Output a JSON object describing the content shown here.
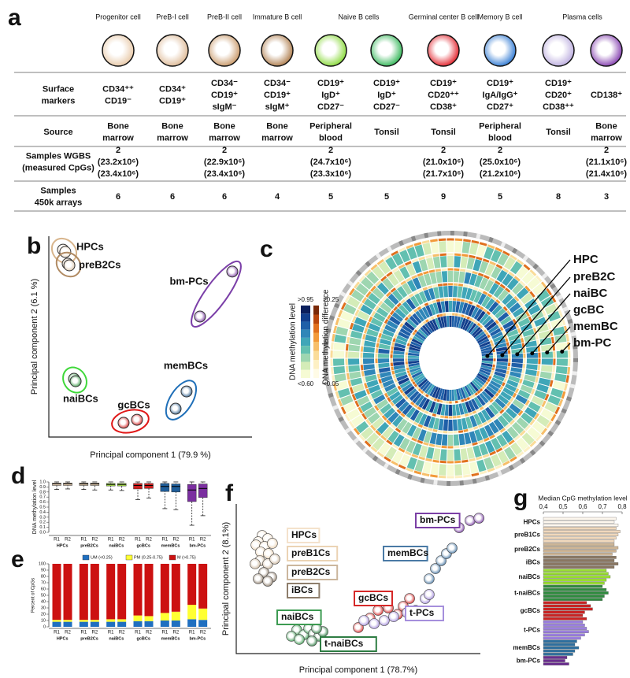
{
  "panel_a": {
    "letter": "a",
    "headers": [
      "Progenitor cell",
      "PreB-I cell",
      "PreB-II cell",
      "Immature B cell",
      "Naive B cells",
      "Germinal center B cell",
      "Memory B cell",
      "Plasma cells"
    ],
    "header_spans": [
      1,
      1,
      1,
      1,
      2,
      1,
      1,
      2
    ],
    "cell_colors": [
      "#e6c4a0",
      "#dbb48e",
      "#c4905c",
      "#a8733f",
      "#7fd62a",
      "#22b04a",
      "#e0101a",
      "#1f6fd0",
      "#b6a6dc",
      "#7a2fa8"
    ],
    "rows": [
      {
        "label": [
          "Surface",
          "markers"
        ],
        "cells": [
          [
            "CD34⁺⁺",
            "CD19⁻"
          ],
          [
            "CD34⁺",
            "CD19⁺"
          ],
          [
            "CD34⁻",
            "CD19⁺",
            "sIgM⁻"
          ],
          [
            "CD34⁻",
            "CD19⁺",
            "sIgM⁺"
          ],
          [
            "CD19⁺",
            "IgD⁺",
            "CD27⁻"
          ],
          [
            "CD19⁺",
            "IgD⁺",
            "CD27⁻"
          ],
          [
            "CD19⁺",
            "CD20⁺⁺",
            "CD38⁺"
          ],
          [
            "CD19⁺",
            "IgA/IgG⁺",
            "CD27⁺"
          ],
          [
            "CD19⁺",
            "CD20⁺",
            "CD38⁺⁺"
          ],
          [
            "CD138⁺"
          ]
        ]
      },
      {
        "label": [
          "Source"
        ],
        "cells": [
          [
            "Bone",
            "marrow"
          ],
          [
            "Bone",
            "marrow"
          ],
          [
            "Bone",
            "marrow"
          ],
          [
            "Bone",
            "marrow"
          ],
          [
            "Peripheral",
            "blood"
          ],
          [
            "Tonsil"
          ],
          [
            "Tonsil"
          ],
          [
            "Peripheral",
            "blood"
          ],
          [
            "Tonsil"
          ],
          [
            "Bone",
            "marrow"
          ]
        ]
      },
      {
        "label": [
          "Samples WGBS",
          "(measured CpGs)"
        ],
        "cells": [
          [
            "2",
            "(23.2x10⁶)",
            "(23.4x10⁶)"
          ],
          [],
          [
            "2",
            "(22.9x10⁶)",
            "(23.4x10⁶)"
          ],
          [],
          [
            "2",
            "(24.7x10⁶)",
            "(23.3x10⁶)"
          ],
          [],
          [
            "2",
            "(21.0x10⁶)",
            "(21.7x10⁶)"
          ],
          [
            "2",
            "(25.0x10⁶)",
            "(21.2x10⁶)"
          ],
          [],
          [
            "2",
            "(21.1x10⁶)",
            "(21.4x10⁶)"
          ]
        ]
      },
      {
        "label": [
          "Samples",
          "450k arrays"
        ],
        "cells": [
          [
            "6"
          ],
          [
            "6"
          ],
          [
            "6"
          ],
          [
            "4"
          ],
          [
            "5"
          ],
          [
            "5"
          ],
          [
            "9"
          ],
          [
            "5"
          ],
          [
            "8"
          ],
          [
            "3"
          ]
        ]
      }
    ]
  },
  "panel_b": {
    "letter": "b",
    "type": "scatter",
    "x_label": "Principal component 1 (79.9 %)",
    "y_label": "Principal component 2 (6.1 %)",
    "xlim": [
      0,
      100
    ],
    "ylim": [
      0,
      100
    ],
    "series": [
      {
        "name": "HPCs",
        "color": "#f6e4cf",
        "edge_color": "#d8b58c",
        "x": [
          7,
          8.1
        ],
        "y": [
          93.3,
          92.2
        ]
      },
      {
        "name": "preB2Cs",
        "color": "#d9c4aa",
        "edge_color": "#b08a62",
        "x": [
          9.3,
          10.1
        ],
        "y": [
          86.3,
          85.5
        ]
      },
      {
        "name": "naiBCs",
        "color": "#3a9a48",
        "edge_color": "#3fd83a",
        "x": [
          12.4,
          13.2
        ],
        "y": [
          29,
          27.8
        ]
      },
      {
        "name": "gcBCs",
        "color": "#d42424",
        "edge_color": "#e01818",
        "x": [
          36.8,
          43.4
        ],
        "y": [
          7.1,
          8.6
        ]
      },
      {
        "name": "memBCs",
        "color": "#2f5f8c",
        "edge_color": "#1f6fb8",
        "x": [
          62.4,
          67.8
        ],
        "y": [
          14.1,
          22.7
        ]
      },
      {
        "name": "bm-PCs",
        "color": "#7a3da0",
        "edge_color": "#7b3fa8",
        "x": [
          74.4,
          90.3
        ],
        "y": [
          60,
          82.4
        ]
      }
    ]
  },
  "panel_c": {
    "letter": "c",
    "labels": [
      "HPC",
      "preB2C",
      "naiBC",
      "gcBC",
      "memBC",
      "bm-PC"
    ],
    "level_label": "DNA methylation level",
    "difference_label": "DNA methylation difference",
    "level_ticks": [
      ">0.95",
      "<0.60"
    ],
    "difference_ticks": [
      ">0.25",
      "<0.05"
    ],
    "level_colors": [
      "#0b1f5c",
      "#123e8c",
      "#1f5fa8",
      "#2f86b8",
      "#3fa6b8",
      "#63c0b0",
      "#9ed6b0",
      "#d4ecb8",
      "#f6fbd4"
    ],
    "difference_colors": [
      "#7a2a0a",
      "#b8460e",
      "#e0701e",
      "#f29a3a",
      "#f7bf6a",
      "#fadc99",
      "#fdf0c4",
      "#fffbe6"
    ]
  },
  "panel_d": {
    "letter": "d",
    "type": "box",
    "y_label": "DNA methylation level",
    "ylim": [
      0,
      1
    ],
    "yticks": [
      {
        "value": 0,
        "label": "0.0"
      },
      0.1,
      0.2,
      0.3,
      0.4,
      0.5,
      0.6,
      0.7,
      0.8,
      0.9,
      {
        "value": 1,
        "label": "1.0"
      }
    ],
    "replicates": [
      "R1",
      "R2"
    ],
    "groups": [
      {
        "name": "HPCs",
        "color": "#f1d8bc",
        "stats": [
          [
            0.85,
            0.93,
            0.96,
            0.98,
            1
          ],
          [
            0.86,
            0.93,
            0.96,
            0.98,
            1
          ]
        ]
      },
      {
        "name": "preB2Cs",
        "color": "#d9c4a8",
        "stats": [
          [
            0.85,
            0.93,
            0.96,
            0.98,
            1
          ],
          [
            0.84,
            0.93,
            0.96,
            0.98,
            1
          ]
        ]
      },
      {
        "name": "naiBCs",
        "color": "#a6e04a",
        "stats": [
          [
            0.84,
            0.92,
            0.95,
            0.97,
            1
          ],
          [
            0.83,
            0.92,
            0.95,
            0.97,
            1
          ]
        ]
      },
      {
        "name": "gcBCs",
        "color": "#cc1f1f",
        "stats": [
          [
            0.65,
            0.86,
            0.93,
            0.97,
            1
          ],
          [
            0.68,
            0.87,
            0.93,
            0.97,
            1
          ]
        ]
      },
      {
        "name": "memBCs",
        "color": "#1f5d99",
        "stats": [
          [
            0.47,
            0.81,
            0.91,
            0.97,
            1
          ],
          [
            0.45,
            0.8,
            0.91,
            0.96,
            1
          ]
        ]
      },
      {
        "name": "bm-PCs",
        "color": "#7b2fa0",
        "stats": [
          [
            0.14,
            0.61,
            0.84,
            0.95,
            1
          ],
          [
            0.33,
            0.69,
            0.87,
            0.96,
            1
          ]
        ]
      }
    ]
  },
  "panel_e": {
    "letter": "e",
    "type": "stacked-bar",
    "y_label": "Percent of CpGs",
    "ylim": [
      0,
      100
    ],
    "yticks": [
      0,
      10,
      20,
      30,
      40,
      50,
      60,
      70,
      80,
      90,
      100
    ],
    "replicates": [
      "R1",
      "R2"
    ],
    "groups": [
      "HPCs",
      "preB2Cs",
      "naiBCs",
      "gcBCs",
      "memBCs",
      "bm-PCs"
    ],
    "series": [
      {
        "name": "UM (<0.25)",
        "color": "#1f6fc0",
        "values": [
          8,
          8,
          8,
          8,
          8,
          8,
          9,
          9,
          10,
          10,
          12,
          11
        ]
      },
      {
        "name": "PM (0.25-0.75)",
        "color": "#ffff33",
        "values": [
          3,
          3,
          3,
          3,
          4,
          4,
          9,
          8,
          12,
          14,
          23,
          18
        ]
      },
      {
        "name": "M (>0.75)",
        "color": "#cc1111",
        "values": [
          89,
          89,
          89,
          89,
          88,
          88,
          82,
          83,
          78,
          76,
          65,
          71
        ]
      }
    ]
  },
  "panel_f": {
    "letter": "f",
    "type": "scatter",
    "x_label": "Principal component 1 (78.7%)",
    "y_label": "Principal component 2 (8.1%)",
    "xlim": [
      0,
      100
    ],
    "ylim": [
      0,
      100
    ],
    "series": [
      {
        "name": "HPCs",
        "color": "#f4e2cc",
        "x": [
          10.6,
          12.9,
          9
        ],
        "y": [
          78.9,
          76.8,
          74.7
        ]
      },
      {
        "name": "preB1Cs",
        "color": "#ebd3b4",
        "x": [
          8.1,
          11.6,
          14.8,
          10,
          13.2
        ],
        "y": [
          72.6,
          71.6,
          73.7,
          67.9,
          66.8
        ]
      },
      {
        "name": "preB2Cs",
        "color": "#cbb69d",
        "x": [
          9.7,
          12.9,
          15.8,
          7.7
        ],
        "y": [
          62.1,
          60,
          63.2,
          60
        ]
      },
      {
        "name": "iBCs",
        "color": "#8e7e6c",
        "x": [
          11.3,
          14.5,
          9,
          12.9
        ],
        "y": [
          54.2,
          51.1,
          50,
          48.4
        ]
      },
      {
        "name": "naiBCs",
        "color": "#3d9b52",
        "x": [
          24.8,
          27.7,
          22.6,
          29.7,
          25.8
        ],
        "y": [
          15.8,
          12.6,
          11.6,
          16.8,
          9.5
        ]
      },
      {
        "name": "t-naiBCs",
        "color": "#2e7d43",
        "x": [
          31.6,
          33.9,
          31,
          35.5,
          32.9
        ],
        "y": [
          13.2,
          11.6,
          8.4,
          14.7,
          16.8
        ]
      },
      {
        "name": "gcBCs",
        "color": "#d62828",
        "x": [
          50,
          54.8,
          58.1,
          62.3,
          66.1,
          68.4,
          71
        ],
        "y": [
          17.4,
          23.7,
          28.9,
          30.5,
          26.3,
          31.6,
          36.8
        ]
      },
      {
        "name": "t-PCs",
        "color": "#a58fdc",
        "x": [
          52.3,
          56.5,
          60.6,
          64.5,
          70,
          73.5,
          77.4,
          79
        ],
        "y": [
          22.1,
          20,
          22.1,
          24.7,
          27.4,
          28.9,
          36.8,
          39.5
        ]
      },
      {
        "name": "memBCs",
        "color": "#4a7aa5",
        "x": [
          79,
          81.6,
          83.9,
          86.1,
          88.4
        ],
        "y": [
          50,
          56.8,
          62.1,
          66.8,
          70.5
        ]
      },
      {
        "name": "bm-PCs",
        "color": "#7b3fa5",
        "x": [
          91.3,
          95.8,
          99.4
        ],
        "y": [
          84.2,
          88.9,
          90.5
        ]
      }
    ]
  },
  "panel_g": {
    "letter": "g",
    "type": "hbar",
    "title": "Median CpG methylation level",
    "xlim": [
      0.4,
      0.8
    ],
    "xticks": [
      {
        "value": 0.4,
        "label": "0,4"
      },
      {
        "value": 0.5,
        "label": "0,5"
      },
      {
        "value": 0.6,
        "label": "0,6"
      },
      {
        "value": 0.7,
        "label": "0,7"
      },
      {
        "value": 0.8,
        "label": "0,8"
      }
    ],
    "series": [
      {
        "name": "HPCs",
        "color": "#fdf7ee",
        "values": [
          0.77,
          0.76,
          0.78
        ]
      },
      {
        "name": "preB1Cs",
        "color": "#f0d8bc",
        "values": [
          0.77,
          0.79,
          0.78,
          0.77,
          0.76
        ]
      },
      {
        "name": "preB2Cs",
        "color": "#cdb596",
        "values": [
          0.76,
          0.78,
          0.77,
          0.75
        ]
      },
      {
        "name": "iBCs",
        "color": "#8a7762",
        "values": [
          0.77,
          0.76,
          0.78,
          0.76
        ]
      },
      {
        "name": "naiBCs",
        "color": "#99dd33",
        "values": [
          0.72,
          0.73,
          0.74,
          0.72,
          0.71
        ]
      },
      {
        "name": "t-naiBCs",
        "color": "#2e8b3e",
        "values": [
          0.7,
          0.72,
          0.73,
          0.71,
          0.7
        ]
      },
      {
        "name": "gcBCs",
        "color": "#cc2222",
        "values": [
          0.62,
          0.64,
          0.65,
          0.61,
          0.6,
          0.62
        ]
      },
      {
        "name": "t-PCs",
        "color": "#9b7fe0",
        "values": [
          0.6,
          0.61,
          0.62,
          0.63,
          0.61,
          0.59
        ]
      },
      {
        "name": "memBCs",
        "color": "#2e6f9e",
        "values": [
          0.57,
          0.56,
          0.58,
          0.56,
          0.55
        ]
      },
      {
        "name": "bm-PCs",
        "color": "#6a2d8f",
        "values": [
          0.52,
          0.51,
          0.53
        ]
      }
    ]
  }
}
